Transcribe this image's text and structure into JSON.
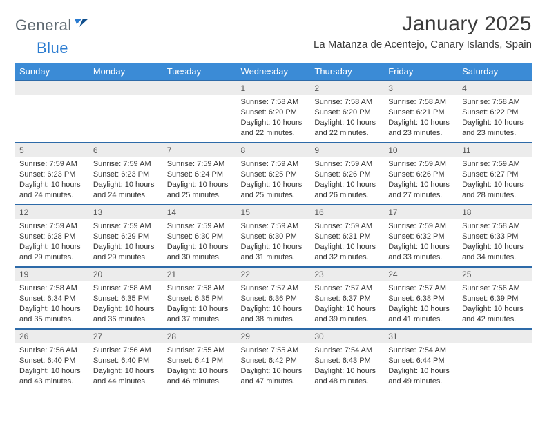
{
  "brand": {
    "part1": "General",
    "part2": "Blue"
  },
  "title": "January 2025",
  "location": "La Matanza de Acentejo, Canary Islands, Spain",
  "colors": {
    "header_bg": "#3b8bd6",
    "row_divider": "#2d6aa8",
    "daynum_bg": "#ececec",
    "text": "#333333",
    "brand_gray": "#5f6a72",
    "brand_blue": "#2a7bd0"
  },
  "table": {
    "columns": [
      "Sunday",
      "Monday",
      "Tuesday",
      "Wednesday",
      "Thursday",
      "Friday",
      "Saturday"
    ],
    "weeks": [
      [
        null,
        null,
        null,
        {
          "d": "1",
          "sr": "7:58 AM",
          "ss": "6:20 PM",
          "dl": "10 hours and 22 minutes."
        },
        {
          "d": "2",
          "sr": "7:58 AM",
          "ss": "6:20 PM",
          "dl": "10 hours and 22 minutes."
        },
        {
          "d": "3",
          "sr": "7:58 AM",
          "ss": "6:21 PM",
          "dl": "10 hours and 23 minutes."
        },
        {
          "d": "4",
          "sr": "7:58 AM",
          "ss": "6:22 PM",
          "dl": "10 hours and 23 minutes."
        }
      ],
      [
        {
          "d": "5",
          "sr": "7:59 AM",
          "ss": "6:23 PM",
          "dl": "10 hours and 24 minutes."
        },
        {
          "d": "6",
          "sr": "7:59 AM",
          "ss": "6:23 PM",
          "dl": "10 hours and 24 minutes."
        },
        {
          "d": "7",
          "sr": "7:59 AM",
          "ss": "6:24 PM",
          "dl": "10 hours and 25 minutes."
        },
        {
          "d": "8",
          "sr": "7:59 AM",
          "ss": "6:25 PM",
          "dl": "10 hours and 25 minutes."
        },
        {
          "d": "9",
          "sr": "7:59 AM",
          "ss": "6:26 PM",
          "dl": "10 hours and 26 minutes."
        },
        {
          "d": "10",
          "sr": "7:59 AM",
          "ss": "6:26 PM",
          "dl": "10 hours and 27 minutes."
        },
        {
          "d": "11",
          "sr": "7:59 AM",
          "ss": "6:27 PM",
          "dl": "10 hours and 28 minutes."
        }
      ],
      [
        {
          "d": "12",
          "sr": "7:59 AM",
          "ss": "6:28 PM",
          "dl": "10 hours and 29 minutes."
        },
        {
          "d": "13",
          "sr": "7:59 AM",
          "ss": "6:29 PM",
          "dl": "10 hours and 29 minutes."
        },
        {
          "d": "14",
          "sr": "7:59 AM",
          "ss": "6:30 PM",
          "dl": "10 hours and 30 minutes."
        },
        {
          "d": "15",
          "sr": "7:59 AM",
          "ss": "6:30 PM",
          "dl": "10 hours and 31 minutes."
        },
        {
          "d": "16",
          "sr": "7:59 AM",
          "ss": "6:31 PM",
          "dl": "10 hours and 32 minutes."
        },
        {
          "d": "17",
          "sr": "7:59 AM",
          "ss": "6:32 PM",
          "dl": "10 hours and 33 minutes."
        },
        {
          "d": "18",
          "sr": "7:58 AM",
          "ss": "6:33 PM",
          "dl": "10 hours and 34 minutes."
        }
      ],
      [
        {
          "d": "19",
          "sr": "7:58 AM",
          "ss": "6:34 PM",
          "dl": "10 hours and 35 minutes."
        },
        {
          "d": "20",
          "sr": "7:58 AM",
          "ss": "6:35 PM",
          "dl": "10 hours and 36 minutes."
        },
        {
          "d": "21",
          "sr": "7:58 AM",
          "ss": "6:35 PM",
          "dl": "10 hours and 37 minutes."
        },
        {
          "d": "22",
          "sr": "7:57 AM",
          "ss": "6:36 PM",
          "dl": "10 hours and 38 minutes."
        },
        {
          "d": "23",
          "sr": "7:57 AM",
          "ss": "6:37 PM",
          "dl": "10 hours and 39 minutes."
        },
        {
          "d": "24",
          "sr": "7:57 AM",
          "ss": "6:38 PM",
          "dl": "10 hours and 41 minutes."
        },
        {
          "d": "25",
          "sr": "7:56 AM",
          "ss": "6:39 PM",
          "dl": "10 hours and 42 minutes."
        }
      ],
      [
        {
          "d": "26",
          "sr": "7:56 AM",
          "ss": "6:40 PM",
          "dl": "10 hours and 43 minutes."
        },
        {
          "d": "27",
          "sr": "7:56 AM",
          "ss": "6:40 PM",
          "dl": "10 hours and 44 minutes."
        },
        {
          "d": "28",
          "sr": "7:55 AM",
          "ss": "6:41 PM",
          "dl": "10 hours and 46 minutes."
        },
        {
          "d": "29",
          "sr": "7:55 AM",
          "ss": "6:42 PM",
          "dl": "10 hours and 47 minutes."
        },
        {
          "d": "30",
          "sr": "7:54 AM",
          "ss": "6:43 PM",
          "dl": "10 hours and 48 minutes."
        },
        {
          "d": "31",
          "sr": "7:54 AM",
          "ss": "6:44 PM",
          "dl": "10 hours and 49 minutes."
        },
        null
      ]
    ]
  },
  "labels": {
    "sunrise": "Sunrise: ",
    "sunset": "Sunset: ",
    "daylight": "Daylight: "
  }
}
